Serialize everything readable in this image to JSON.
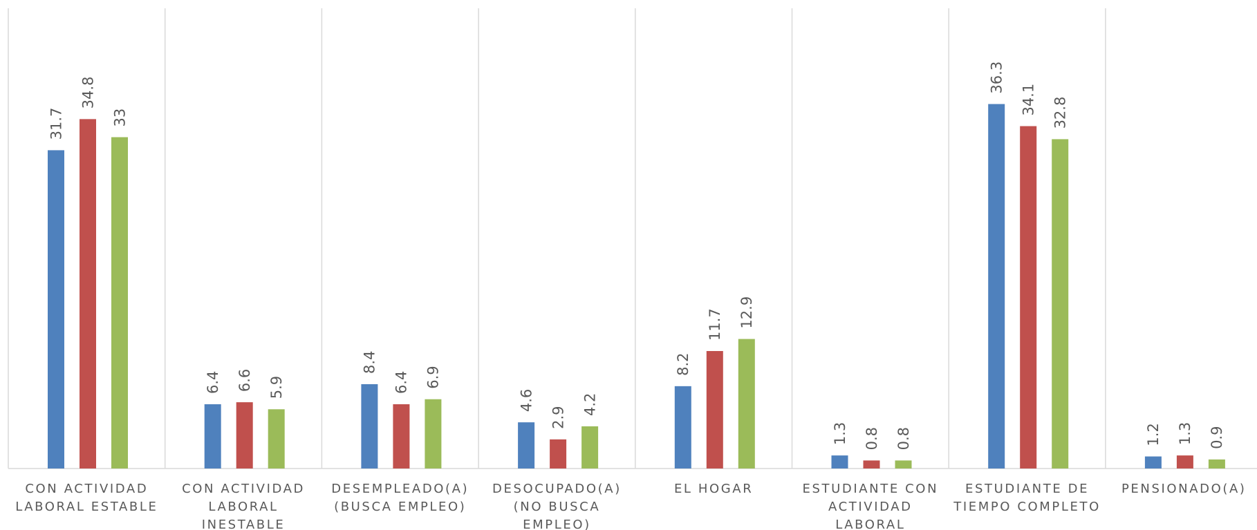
{
  "chart_data": {
    "type": "bar",
    "categories": [
      [
        "CON ACTIVIDAD",
        "LABORAL ESTABLE"
      ],
      [
        "CON ACTIVIDAD",
        "LABORAL",
        "INESTABLE"
      ],
      [
        "DESEMPLEADO(A)",
        "(BUSCA EMPLEO)"
      ],
      [
        "DESOCUPADO(A)",
        "(NO BUSCA",
        "EMPLEO)"
      ],
      [
        "EL HOGAR"
      ],
      [
        "ESTUDIANTE CON",
        "ACTIVIDAD",
        "LABORAL"
      ],
      [
        "ESTUDIANTE DE",
        "TIEMPO COMPLETO"
      ],
      [
        "PENSIONADO(A)"
      ]
    ],
    "series": [
      {
        "color": "#4f81bd",
        "values": [
          31.7,
          6.4,
          8.4,
          4.6,
          8.2,
          1.3,
          36.3,
          1.2
        ],
        "labels": [
          "31.7",
          "6.4",
          "8.4",
          "4.6",
          "8.2",
          "1.3",
          "36.3",
          "1.2"
        ]
      },
      {
        "color": "#c0504d",
        "values": [
          34.8,
          6.6,
          6.4,
          2.9,
          11.7,
          0.8,
          34.1,
          1.3
        ],
        "labels": [
          "34.8",
          "6.6",
          "6.4",
          "2.9",
          "11.7",
          "0.8",
          "34.1",
          "1.3"
        ]
      },
      {
        "color": "#9bbb59",
        "values": [
          33,
          5.9,
          6.9,
          4.2,
          12.9,
          0.8,
          32.8,
          0.9
        ],
        "labels": [
          "33",
          "5.9",
          "6.9",
          "4.2",
          "12.9",
          "0.8",
          "32.8",
          "0.9"
        ]
      }
    ],
    "ylim": [
      0,
      40
    ],
    "gridlines": false,
    "legend": "none",
    "title": "",
    "xlabel": "",
    "ylabel": ""
  }
}
